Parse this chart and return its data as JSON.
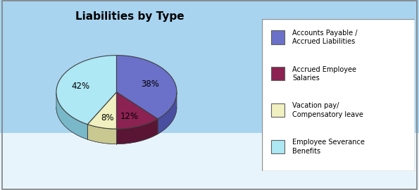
{
  "title": "Liabilities by Type",
  "slices": [
    38,
    12,
    8,
    42
  ],
  "labels": [
    "38%",
    "12%",
    "8%",
    "42%"
  ],
  "colors": [
    "#6B70C8",
    "#8B2252",
    "#F0F0C0",
    "#ADE8F4"
  ],
  "side_colors": [
    "#4A4EA0",
    "#5A1535",
    "#C8C890",
    "#78B8C8"
  ],
  "edge_color": "#404040",
  "legend_labels": [
    "Accounts Payable /\nAccrued Liabilities",
    "Accrued Employee\nSalaries",
    "Vacation pay/\nCompensatory leave",
    "Employee Severance\nBenefits"
  ],
  "legend_colors": [
    "#6B70C8",
    "#8B2252",
    "#F0F0C0",
    "#ADE8F4"
  ],
  "bg_color": "#9AC8E8",
  "bottom_bg": "#FFFFFF",
  "border_color": "#808080",
  "title_fontsize": 11,
  "label_fontsize": 8.5,
  "startangle": 90,
  "depth": 0.09
}
